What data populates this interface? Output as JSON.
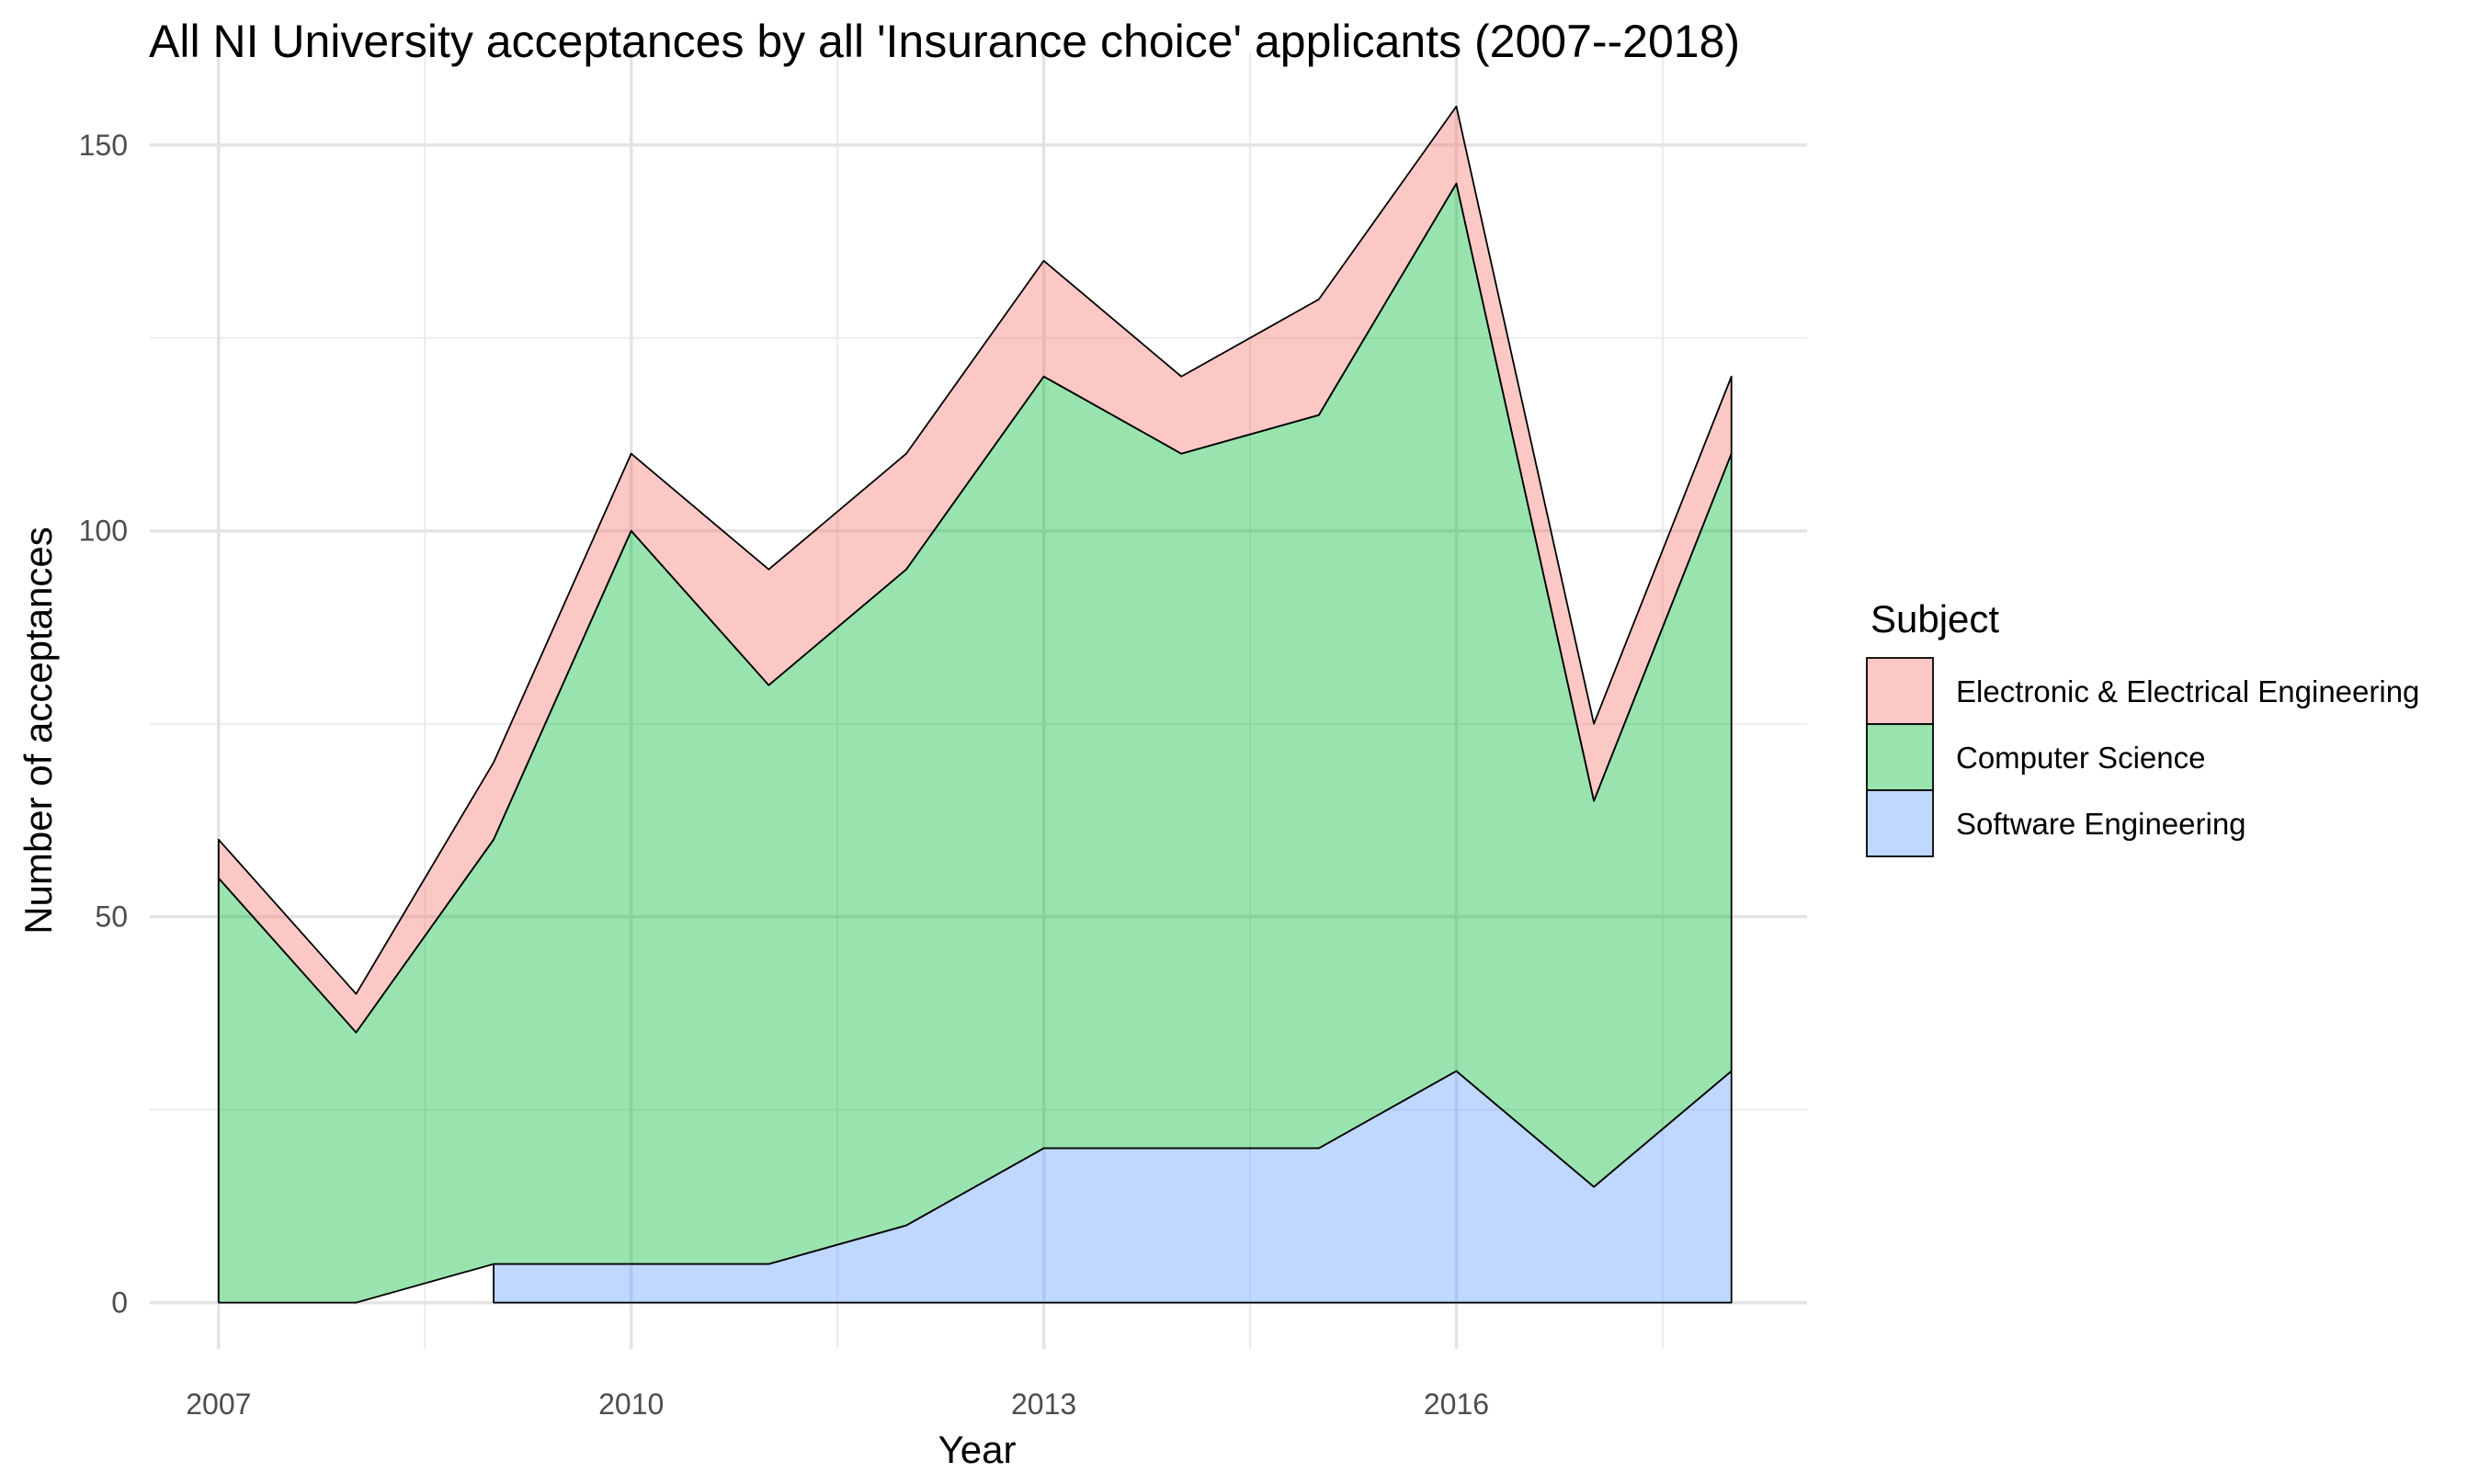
{
  "chart_data": {
    "type": "area",
    "title": "All NI University acceptances by all 'Insurance choice' applicants (2007--2018)",
    "xlabel": "Year",
    "ylabel": "Number of acceptances",
    "x": [
      2007,
      2008,
      2009,
      2010,
      2011,
      2012,
      2013,
      2014,
      2015,
      2016,
      2017,
      2018
    ],
    "x_ticks": [
      2007,
      2010,
      2013,
      2016
    ],
    "y_ticks": [
      0,
      50,
      100,
      150
    ],
    "xlim": [
      2006.5,
      2018.55
    ],
    "ylim": [
      -6,
      162
    ],
    "grid": true,
    "legend": {
      "title": "Subject",
      "position": "right",
      "entries": [
        {
          "name": "Electronic & Electrical Engineering",
          "color": "#F8766D"
        },
        {
          "name": "Computer Science",
          "color": "#00BA38"
        },
        {
          "name": "Software Engineering",
          "color": "#619CFF"
        }
      ]
    },
    "series": [
      {
        "name": "Electronic & Electrical Engineering",
        "color": "#F8766D",
        "values": [
          5,
          5,
          10,
          10,
          15,
          15,
          15,
          10,
          15,
          10,
          10,
          10
        ]
      },
      {
        "name": "Computer Science",
        "color": "#00BA38",
        "values": [
          55,
          35,
          55,
          95,
          75,
          85,
          100,
          90,
          95,
          115,
          50,
          80
        ]
      },
      {
        "name": "Software Engineering",
        "color": "#619CFF",
        "values": [
          null,
          null,
          5,
          5,
          5,
          10,
          20,
          20,
          20,
          30,
          15,
          30
        ]
      }
    ]
  }
}
